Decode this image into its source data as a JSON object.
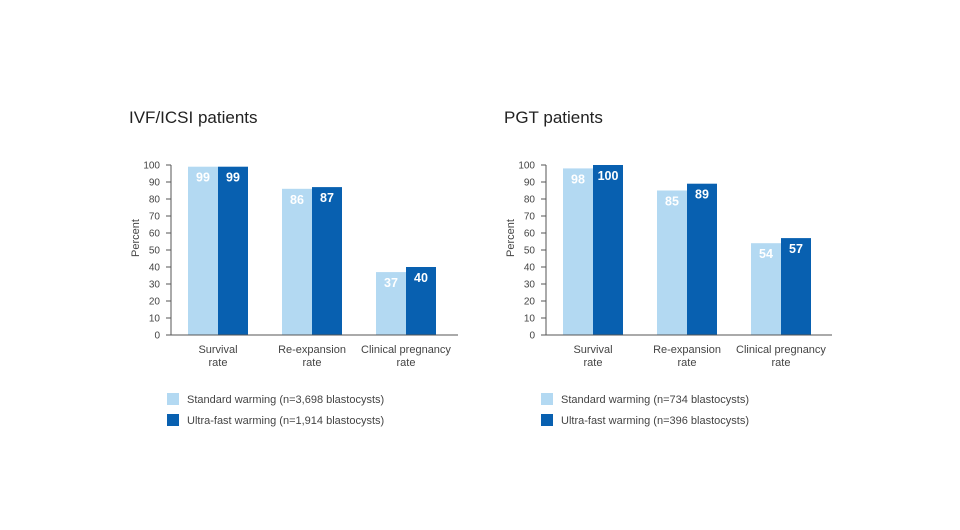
{
  "chart_data": [
    {
      "type": "bar",
      "title": "IVF/ICSI patients",
      "ylabel": "Percent",
      "ylim": [
        0,
        100
      ],
      "yticks": [
        0,
        10,
        20,
        30,
        40,
        50,
        60,
        70,
        80,
        90,
        100
      ],
      "categories": [
        [
          "Survival",
          "rate"
        ],
        [
          "Re-expansion",
          "rate"
        ],
        [
          "Clinical pregnancy",
          "rate"
        ]
      ],
      "series": [
        {
          "name": "Standard warming (n=3,698 blastocysts)",
          "color": "#b3d9f2",
          "values": [
            99,
            86,
            37
          ]
        },
        {
          "name": "Ultra-fast warming (n=1,914 blastocysts)",
          "color": "#0860b0",
          "values": [
            99,
            87,
            40
          ]
        }
      ],
      "legend": "bottom-left",
      "grid": false
    },
    {
      "type": "bar",
      "title": "PGT patients",
      "ylabel": "Percent",
      "ylim": [
        0,
        100
      ],
      "yticks": [
        0,
        10,
        20,
        30,
        40,
        50,
        60,
        70,
        80,
        90,
        100
      ],
      "categories": [
        [
          "Survival",
          "rate"
        ],
        [
          "Re-expansion",
          "rate"
        ],
        [
          "Clinical pregnancy",
          "rate"
        ]
      ],
      "series": [
        {
          "name": "Standard warming (n=734 blastocysts)",
          "color": "#b3d9f2",
          "values": [
            98,
            85,
            54
          ]
        },
        {
          "name": "Ultra-fast warming (n=396 blastocysts)",
          "color": "#0860b0",
          "values": [
            100,
            89,
            57
          ]
        }
      ],
      "legend": "bottom-left",
      "grid": false
    }
  ]
}
